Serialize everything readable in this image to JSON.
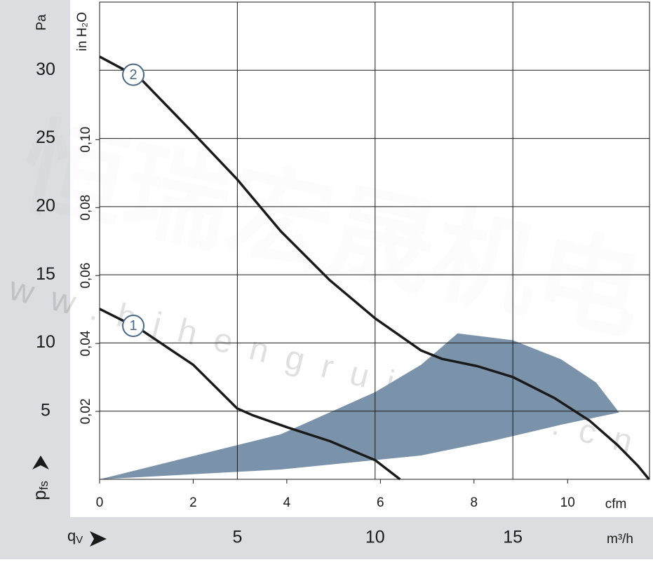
{
  "chart_data": {
    "type": "line",
    "y_label": "Pa",
    "y_label_main": "p",
    "y_label_sub": "fs",
    "y2_label": "in H₂O",
    "x_label": "cfm",
    "x2_label": "m³/h",
    "x2_label_main": "q",
    "x2_label_sub": "V",
    "watermark": "恒瑞宏晟机电",
    "watermark_url": "www.bjhengrui.com.cn",
    "xlim": [
      0,
      11.75
    ],
    "xticks": [
      0,
      2,
      4,
      6,
      8,
      10
    ],
    "x2lim": [
      0,
      19.96
    ],
    "x2ticks": [
      5,
      10,
      15
    ],
    "ylim": [
      0,
      35
    ],
    "yticks": [
      5,
      10,
      15,
      20,
      25,
      30
    ],
    "y2lim": [
      0,
      0.1405
    ],
    "y2ticks": [
      {
        "value": 0.02,
        "label": "0,02"
      },
      {
        "value": 0.04,
        "label": "0,04"
      },
      {
        "value": 0.06,
        "label": "0,06"
      },
      {
        "value": 0.08,
        "label": "0,08"
      },
      {
        "value": 0.1,
        "label": "0,10"
      }
    ],
    "grid": true,
    "series": [
      {
        "name": "1",
        "color": "#1a1a1a",
        "x": [
          0,
          0.87,
          2.0,
          2.94,
          3.27,
          4.02,
          4.92,
          5.89,
          6.42
        ],
        "values": [
          12.5,
          11.0,
          8.4,
          5.2,
          4.7,
          3.8,
          2.8,
          1.4,
          0
        ]
      },
      {
        "name": "2",
        "color": "#1a1a1a",
        "x": [
          0,
          0.87,
          2.0,
          2.94,
          3.87,
          4.92,
          5.89,
          6.87,
          7.32,
          8.07,
          8.83,
          9.72,
          10.47,
          11.07,
          11.5,
          11.74
        ],
        "values": [
          31.0,
          29.4,
          25.4,
          22.0,
          18.2,
          14.6,
          11.8,
          9.45,
          8.83,
          8.3,
          7.5,
          5.96,
          4.3,
          2.5,
          1.0,
          0
        ]
      }
    ],
    "region": {
      "color": "#7a93ab",
      "x": [
        0,
        3.87,
        5.89,
        6.87,
        7.65,
        8.83,
        9.86,
        10.61,
        11.1,
        9.86,
        8.37,
        6.87,
        3.87,
        0
      ],
      "values": [
        0,
        3.3,
        6.4,
        8.4,
        10.7,
        10.2,
        8.8,
        7.1,
        4.9,
        4.0,
        2.8,
        1.75,
        0.72,
        0
      ]
    }
  }
}
